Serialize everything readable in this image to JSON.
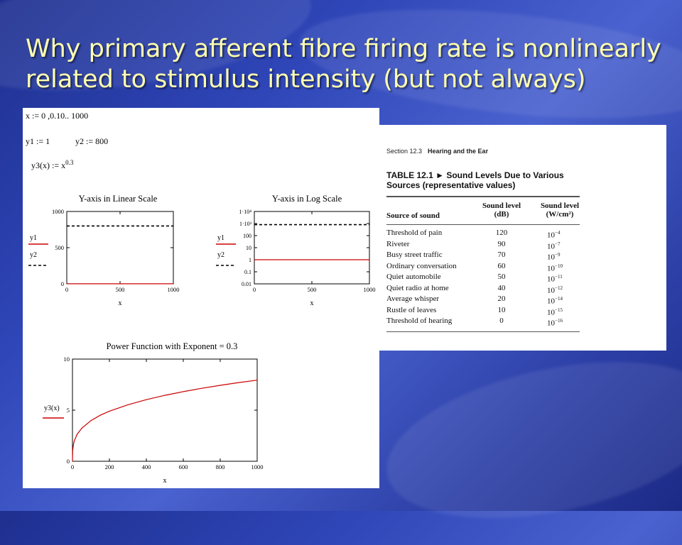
{
  "slide": {
    "title": "Why primary afferent fibre firing rate is nonlinearly related to stimulus intensity (but not always)"
  },
  "worksheet": {
    "defs": {
      "x_def": "x := 0 ,0.10.. 1000",
      "y1_def": "y1 := 1",
      "y2_def": "y2 := 800",
      "y3_def_lhs": "y3(x) := x",
      "y3_def_exp": "0.3"
    }
  },
  "chart_data": [
    {
      "type": "line",
      "title": "Y-axis in Linear Scale",
      "xlabel": "x",
      "ylabel": "",
      "xlim": [
        0,
        1000
      ],
      "ylim": [
        0,
        1000
      ],
      "x_ticks": [
        "0",
        "500",
        "1000"
      ],
      "y_ticks": [
        "0",
        "500",
        "1000"
      ],
      "legend": [
        "y1",
        "y2"
      ],
      "series": [
        {
          "name": "y1",
          "style": "solid",
          "color": "#cc0000",
          "x": [
            0,
            1000
          ],
          "values": [
            1,
            1
          ]
        },
        {
          "name": "y2",
          "style": "dashed",
          "color": "#000000",
          "x": [
            0,
            1000
          ],
          "values": [
            800,
            800
          ]
        }
      ]
    },
    {
      "type": "line",
      "title": "Y-axis in Log Scale",
      "xlabel": "x",
      "ylabel": "",
      "yscale": "log",
      "xlim": [
        0,
        1000
      ],
      "ylim": [
        0.01,
        10000
      ],
      "x_ticks": [
        "0",
        "500",
        "1000"
      ],
      "y_ticks": [
        "1·10⁴",
        "1·10³",
        "100",
        "10",
        "1",
        "0.1",
        "0.01"
      ],
      "legend": [
        "y1",
        "y2"
      ],
      "series": [
        {
          "name": "y1",
          "style": "solid",
          "color": "#cc0000",
          "x": [
            0,
            1000
          ],
          "values": [
            1,
            1
          ]
        },
        {
          "name": "y2",
          "style": "dashed",
          "color": "#000000",
          "x": [
            0,
            1000
          ],
          "values": [
            800,
            800
          ]
        }
      ]
    },
    {
      "type": "line",
      "title": "Power Function with Exponent = 0.3",
      "xlabel": "x",
      "ylabel": "y3(x)",
      "xlim": [
        0,
        1000
      ],
      "ylim": [
        0,
        10
      ],
      "x_ticks": [
        "0",
        "200",
        "400",
        "600",
        "800",
        "1000"
      ],
      "y_ticks": [
        "0",
        "5",
        "10"
      ],
      "series": [
        {
          "name": "y3(x)",
          "style": "solid",
          "color": "#cc0000",
          "x": [
            0,
            1,
            5,
            10,
            25,
            50,
            100,
            150,
            200,
            300,
            400,
            500,
            600,
            700,
            800,
            900,
            1000
          ],
          "values": [
            0,
            1.0,
            1.62,
            2.0,
            2.63,
            3.23,
            3.98,
            4.5,
            4.9,
            5.53,
            6.03,
            6.45,
            6.81,
            7.14,
            7.43,
            7.7,
            7.94
          ]
        }
      ]
    }
  ],
  "table": {
    "section": "Section 12.3",
    "section_title": "Hearing and the Ear",
    "caption_line1": "TABLE 12.1 ► Sound Levels Due to Various",
    "caption_line2": "Sources (representative values)",
    "col_source": "Source of sound",
    "col_db_1": "Sound level",
    "col_db_2": "(dB)",
    "col_w_1": "Sound level",
    "col_w_2": "(W/cm²)",
    "rows": [
      {
        "source": "Threshold of pain",
        "db": "120",
        "w_base": "10",
        "w_exp": "−4"
      },
      {
        "source": "Riveter",
        "db": "90",
        "w_base": "10",
        "w_exp": "−7"
      },
      {
        "source": "Busy street traffic",
        "db": "70",
        "w_base": "10",
        "w_exp": "−9"
      },
      {
        "source": "Ordinary conversation",
        "db": "60",
        "w_base": "10",
        "w_exp": "−10"
      },
      {
        "source": "Quiet automobile",
        "db": "50",
        "w_base": "10",
        "w_exp": "−11"
      },
      {
        "source": "Quiet radio at home",
        "db": "40",
        "w_base": "10",
        "w_exp": "−12"
      },
      {
        "source": "Average whisper",
        "db": "20",
        "w_base": "10",
        "w_exp": "−14"
      },
      {
        "source": "Rustle of leaves",
        "db": "10",
        "w_base": "10",
        "w_exp": "−15"
      },
      {
        "source": "Threshold of hearing",
        "db": "0",
        "w_base": "10",
        "w_exp": "−16"
      }
    ]
  }
}
